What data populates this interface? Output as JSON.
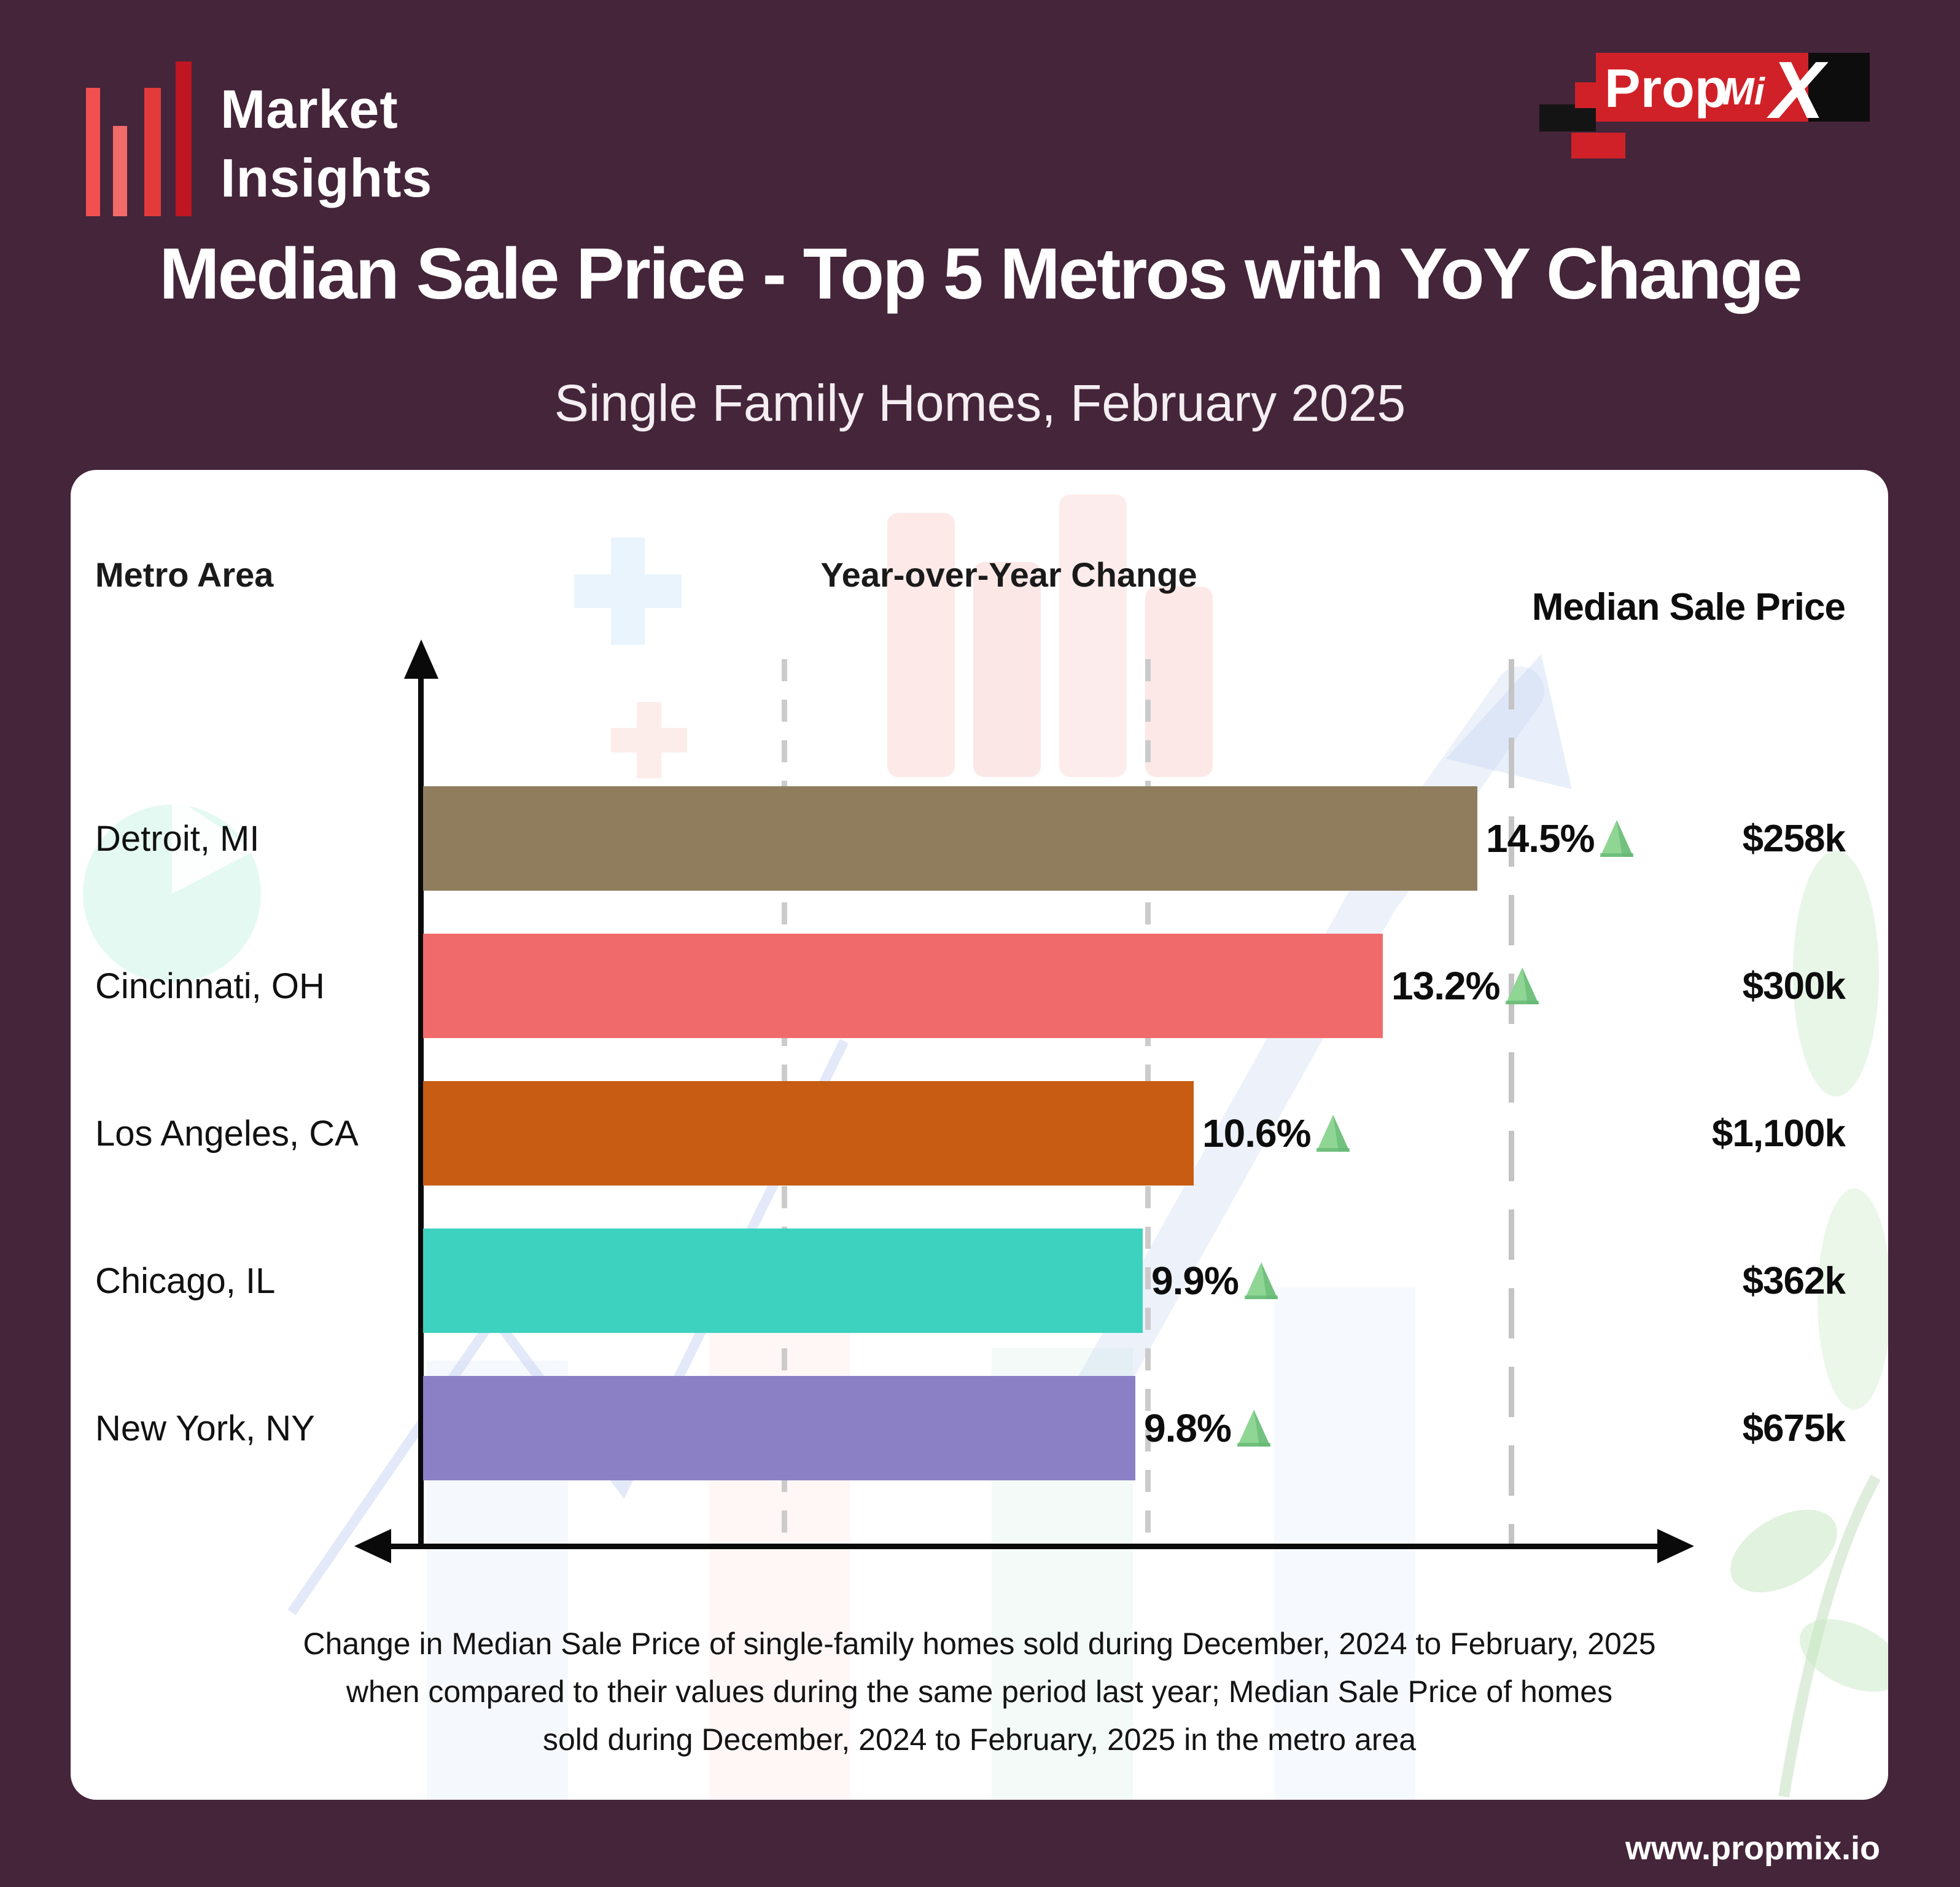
{
  "header": {
    "brand": {
      "line1": "Market",
      "line2": "Insights"
    },
    "propmix": {
      "prop": "Prop",
      "mi": "Mi",
      "x": "X"
    }
  },
  "title": "Median Sale Price - Top 5 Metros with YoY Change",
  "subtitle": "Single Family Homes, February 2025",
  "columns": {
    "metro": "Metro Area",
    "yoy": "Year-over-Year Change",
    "price": "Median Sale Price"
  },
  "chart_data": {
    "type": "bar",
    "orientation": "horizontal",
    "title": "Median Sale Price - Top 5 Metros with YoY Change",
    "subtitle": "Single Family Homes, February 2025",
    "categories": [
      "Detroit, MI",
      "Cincinnati, OH",
      "Los Angeles, CA",
      "Chicago, IL",
      "New York, NY"
    ],
    "series": [
      {
        "name": "Year-over-Year Change",
        "unit": "%",
        "values": [
          14.5,
          13.2,
          10.6,
          9.9,
          9.8
        ],
        "labels": [
          "14.5%",
          "13.2%",
          "10.6%",
          "9.9%",
          "9.8%"
        ]
      },
      {
        "name": "Median Sale Price",
        "unit": "$ thousands",
        "values": [
          258,
          300,
          1100,
          362,
          675
        ],
        "labels": [
          "$258k",
          "$300k",
          "$1,100k",
          "$362k",
          "$675k"
        ]
      }
    ],
    "bar_colors": [
      "#8F7D5E",
      "#F16A6B",
      "#C75C12",
      "#3DD2C0",
      "#8B80C6"
    ],
    "trend": {
      "direction": "up",
      "icon": "triangle-up",
      "fill": "#8FD694",
      "edge": "#63B573"
    },
    "xlim": [
      0,
      17.5
    ],
    "gridlines": [
      5,
      10,
      15
    ],
    "grid_style": "dashed",
    "legend": "none"
  },
  "footnote": {
    "line1": "Change in Median Sale Price of single-family homes sold during December, 2024 to February, 2025",
    "line2": "when compared to their values during the same period last year; Median Sale Price of homes",
    "line3": "sold during December, 2024 to February, 2025 in the metro area"
  },
  "footer": {
    "website": "www.propmix.io"
  },
  "colors": {
    "page_bg": "#45253A",
    "card_bg": "#FFFFFF",
    "axis": "#0A0A0A",
    "gridline": "#CBCBCB",
    "brand_red": "#D02128"
  }
}
